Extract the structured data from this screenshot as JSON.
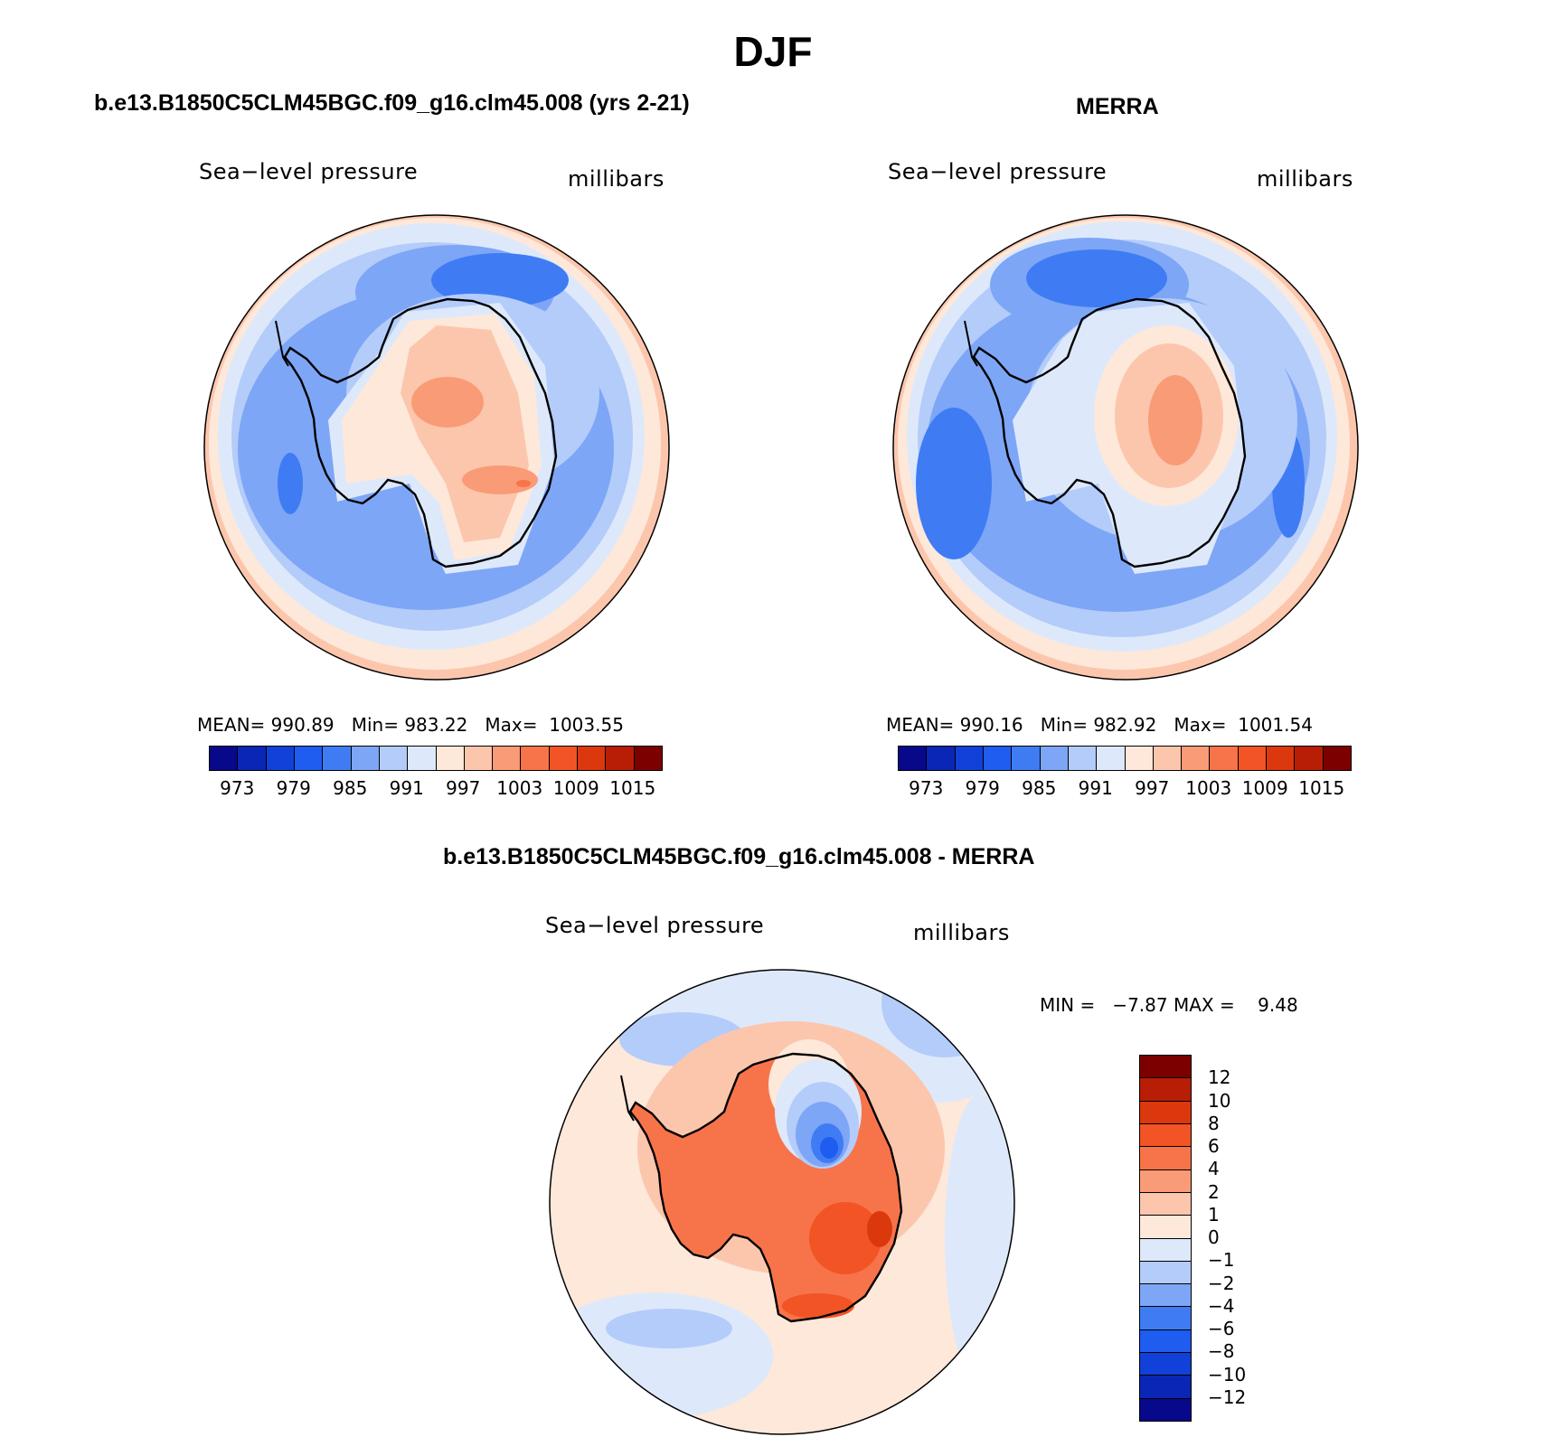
{
  "title": "DJF",
  "panels": [
    {
      "id": "model",
      "title": "b.e13.B1850C5CLM45BGC.f09_g16.clm45.008 (yrs 2-21)",
      "variable": "Sea−level pressure",
      "units": "millibars",
      "stats": {
        "mean_label": "MEAN=",
        "mean": "990.89",
        "min_label": "Min=",
        "min": "983.22",
        "max_label": "Max=",
        "max": "1003.55"
      }
    },
    {
      "id": "obs",
      "title": "MERRA",
      "variable": "Sea−level pressure",
      "units": "millibars",
      "stats": {
        "mean_label": "MEAN=",
        "mean": "990.16",
        "min_label": "Min=",
        "min": "982.92",
        "max_label": "Max=",
        "max": "1001.54"
      }
    },
    {
      "id": "diff",
      "title": "b.e13.B1850C5CLM45BGC.f09_g16.clm45.008 - MERRA",
      "variable": "Sea−level pressure",
      "units": "millibars",
      "stats": {
        "min_label": "MIN =",
        "min": "−7.87",
        "max_label": "MAX =",
        "max": "9.48"
      }
    }
  ],
  "colorbar_abs": {
    "colors": [
      "#08088a",
      "#0a26b5",
      "#1141d8",
      "#1f5cf0",
      "#3f7cf4",
      "#7ea6f6",
      "#b4ccfa",
      "#dde9fb",
      "#fde8da",
      "#fcc6ad",
      "#f99b76",
      "#f7744a",
      "#f25425",
      "#dc380d",
      "#b81e06",
      "#7c0000"
    ],
    "labels": [
      "973",
      "979",
      "985",
      "991",
      "997",
      "1003",
      "1009",
      "1015"
    ]
  },
  "colorbar_diff": {
    "colors": [
      "#7c0000",
      "#b81e06",
      "#dc380d",
      "#f25425",
      "#f7744a",
      "#f99b76",
      "#fcc6ad",
      "#fde8da",
      "#dde9fb",
      "#b4ccfa",
      "#7ea6f6",
      "#3f7cf4",
      "#1f5cf0",
      "#1141d8",
      "#0a26b5",
      "#08088a"
    ],
    "labels": [
      "12",
      "10",
      "8",
      "6",
      "4",
      "2",
      "1",
      "0",
      "−1",
      "−2",
      "−4",
      "−6",
      "−8",
      "−10",
      "−12"
    ]
  }
}
